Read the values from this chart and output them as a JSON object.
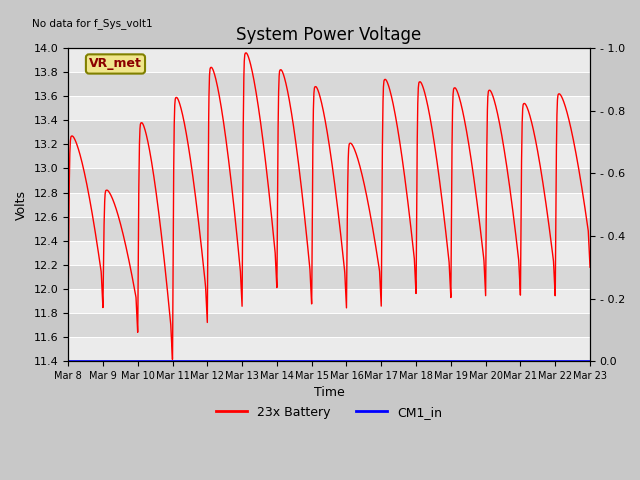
{
  "title": "System Power Voltage",
  "ylabel_left": "Volts",
  "xlabel": "Time",
  "no_data_text": "No data for f_Sys_volt1",
  "vr_met_label": "VR_met",
  "ylim_left": [
    11.4,
    14.0
  ],
  "ylim_right": [
    0.0,
    1.0
  ],
  "yticks_left": [
    11.4,
    11.6,
    11.8,
    12.0,
    12.2,
    12.4,
    12.6,
    12.8,
    13.0,
    13.2,
    13.4,
    13.6,
    13.8,
    14.0
  ],
  "yticks_right": [
    0.0,
    0.2,
    0.4,
    0.6,
    0.8,
    1.0
  ],
  "xtick_labels": [
    "Mar 8",
    "Mar 9",
    "Mar 10",
    "Mar 11",
    "Mar 12",
    "Mar 13",
    "Mar 14",
    "Mar 15",
    "Mar 16",
    "Mar 17",
    "Mar 18",
    "Mar 19",
    "Mar 20",
    "Mar 21",
    "Mar 22",
    "Mar 23"
  ],
  "legend_entries": [
    "23x Battery",
    "CM1_in"
  ],
  "band_colors": [
    "#ebebeb",
    "#d8d8d8"
  ],
  "num_days": 15,
  "figsize": [
    6.4,
    4.8
  ],
  "dpi": 100
}
